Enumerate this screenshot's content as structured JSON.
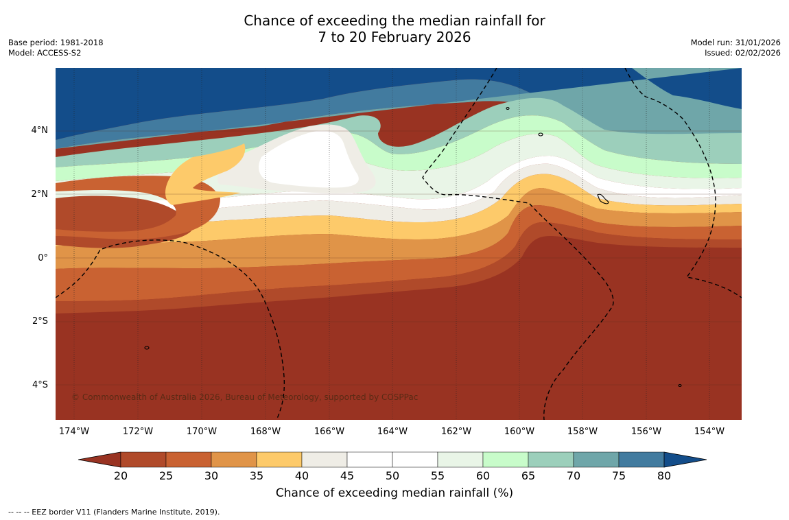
{
  "title": {
    "line1": "Chance of exceeding the median rainfall for",
    "line2": "7 to 20 February 2026"
  },
  "meta": {
    "base_period": "Base period: 1981-2018",
    "model": "Model: ACCESS-S2",
    "model_run": "Model run: 31/01/2026",
    "issued": "Issued: 02/02/2026"
  },
  "map": {
    "lat_labels": [
      "4°N",
      "2°N",
      "0°",
      "2°S",
      "4°S"
    ],
    "lon_labels": [
      "174°W",
      "172°W",
      "170°W",
      "168°W",
      "166°W",
      "164°W",
      "162°W",
      "160°W",
      "158°W",
      "156°W",
      "154°W"
    ],
    "copyright": "© Commonwealth of Australia 2026, Bureau of Meteorology, supported by COSPPac"
  },
  "legend": {
    "ticks": [
      "20",
      "25",
      "30",
      "35",
      "40",
      "45",
      "50",
      "55",
      "60",
      "65",
      "70",
      "75",
      "80"
    ],
    "label": "Chance of exceeding median rainfall (%)",
    "colors": [
      "#993322",
      "#b04a2a",
      "#c96232",
      "#e09448",
      "#fdca6a",
      "#efede6",
      "#ffffff",
      "#ffffff",
      "#e9f5e7",
      "#c8fcca",
      "#9ccfbb",
      "#6fa6a9",
      "#427b9f",
      "#134d8a"
    ],
    "eez_note": "--  --  -- EEZ border V11 (Flanders Marine Institute, 2019)."
  }
}
